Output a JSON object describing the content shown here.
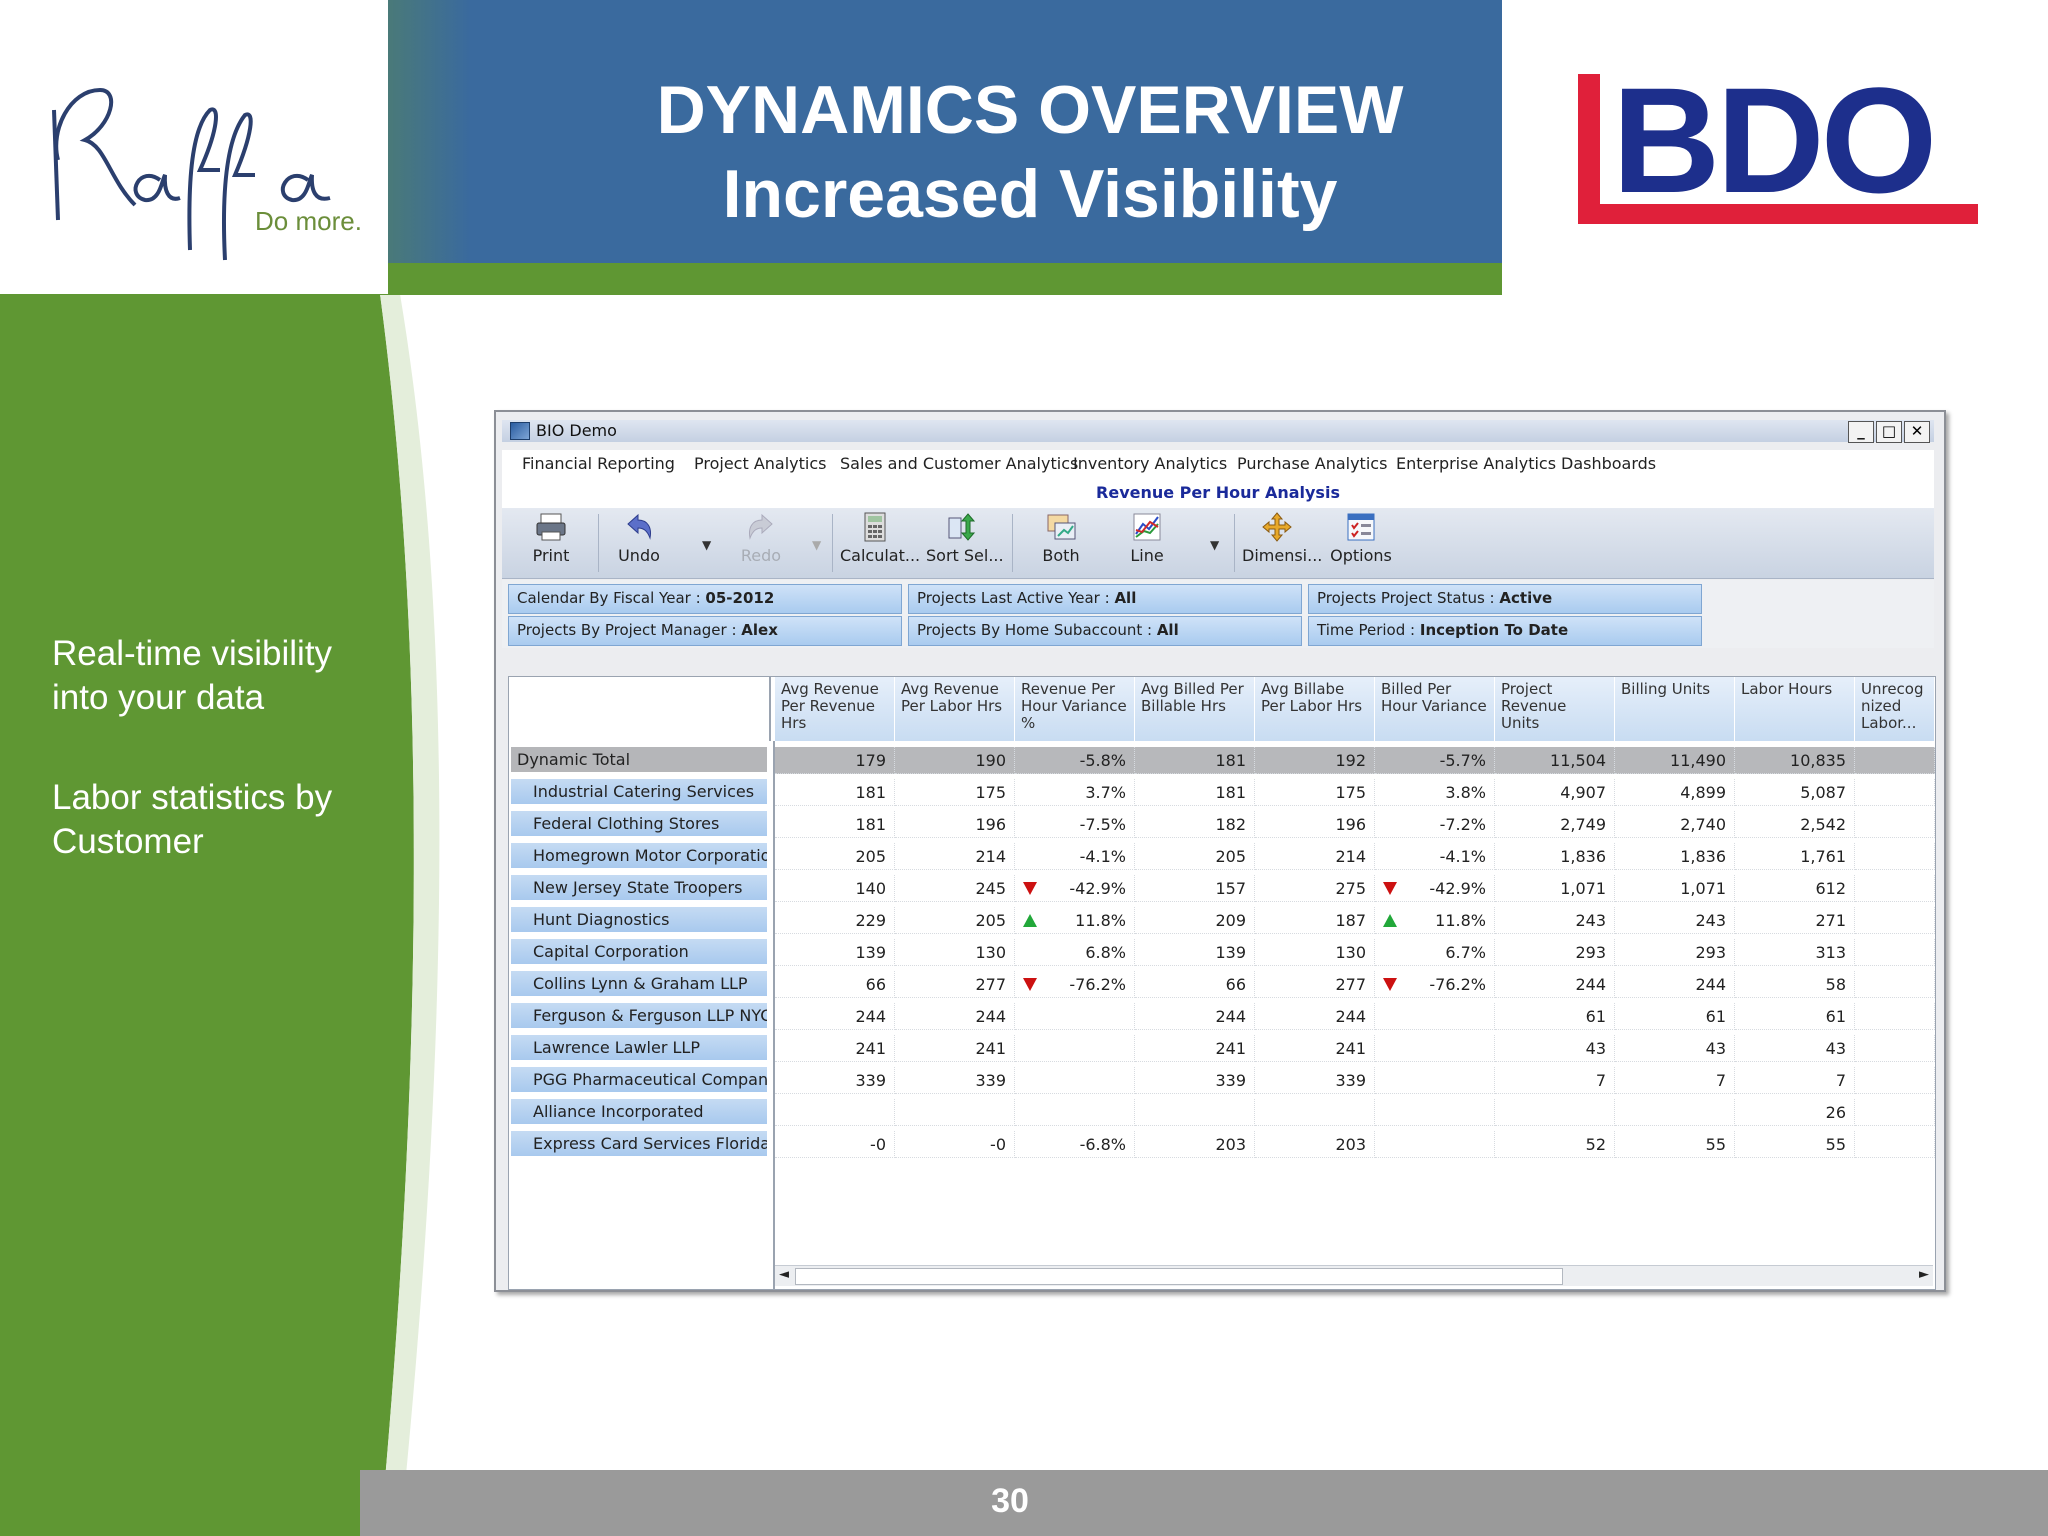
{
  "slide": {
    "title_line1": "DYNAMICS OVERVIEW",
    "title_line2": "Increased Visibility",
    "bullets": [
      "Real-time visibility into your data",
      "Labor statistics by Customer"
    ],
    "page_number": "30",
    "logo_left": {
      "text": "Raffa",
      "tagline": "Do more."
    },
    "logo_right": {
      "text": "BDO"
    },
    "colors": {
      "green": "#5f9733",
      "blue": "#3a6a9e",
      "bdo_red": "#e0203a",
      "bdo_blue": "#1d2f8c"
    }
  },
  "window": {
    "title": "BIO Demo",
    "controls": {
      "minimize": "_",
      "maximize": "□",
      "close": "✕"
    },
    "menu": [
      "Financial Reporting",
      "Project Analytics",
      "Sales and Customer Analytics",
      "Inventory Analytics",
      "Purchase Analytics",
      "Enterprise Analytics",
      "Dashboards"
    ],
    "report_title": "Revenue Per Hour Analysis",
    "toolbar": [
      {
        "label": "Print",
        "icon": "printer-icon"
      },
      {
        "label": "Undo",
        "icon": "undo-icon"
      },
      {
        "label": "Redo",
        "icon": "redo-icon",
        "disabled": true
      },
      {
        "label": "Calculat...",
        "icon": "calculator-icon"
      },
      {
        "label": "Sort Sel...",
        "icon": "sort-icon"
      },
      {
        "label": "Both",
        "icon": "chart-table-icon"
      },
      {
        "label": "Line",
        "icon": "line-chart-icon"
      },
      {
        "label": "Dimensi...",
        "icon": "dimensions-icon"
      },
      {
        "label": "Options",
        "icon": "options-icon"
      }
    ],
    "filters": [
      {
        "label": "Calendar By Fiscal Year :",
        "value": "05-2012"
      },
      {
        "label": "Projects Last Active Year :",
        "value": "All"
      },
      {
        "label": "Projects Project Status :",
        "value": "Active"
      },
      {
        "label": "Projects By Project Manager :",
        "value": "Alex"
      },
      {
        "label": "Projects By Home Subaccount :",
        "value": "All"
      },
      {
        "label": "Time Period :",
        "value": "Inception To Date"
      }
    ],
    "grid": {
      "columns": [
        "Avg Revenue Per Revenue Hrs",
        "Avg Revenue Per Labor Hrs",
        "Revenue Per Hour Variance %",
        "Avg Billed Per Billable Hrs",
        "Avg Billabe Per Labor Hrs",
        "Billed Per Hour Variance",
        "Project Revenue Units",
        "Billing Units",
        "Labor Hours",
        "Unrecog nized Labor..."
      ],
      "total_label": "Dynamic Total",
      "total_values": [
        "179",
        "190",
        "-5.8%",
        "181",
        "192",
        "-5.7%",
        "11,504",
        "11,490",
        "10,835",
        ""
      ],
      "rows": [
        {
          "label": "Industrial Catering Services",
          "values": [
            "181",
            "175",
            "3.7%",
            "181",
            "175",
            "3.8%",
            "4,907",
            "4,899",
            "5,087",
            ""
          ],
          "flag": ""
        },
        {
          "label": "Federal Clothing Stores",
          "values": [
            "181",
            "196",
            "-7.5%",
            "182",
            "196",
            "-7.2%",
            "2,749",
            "2,740",
            "2,542",
            ""
          ],
          "flag": ""
        },
        {
          "label": "Homegrown Motor Corporation",
          "values": [
            "205",
            "214",
            "-4.1%",
            "205",
            "214",
            "-4.1%",
            "1,836",
            "1,836",
            "1,761",
            ""
          ],
          "flag": ""
        },
        {
          "label": "New Jersey State Troopers",
          "values": [
            "140",
            "245",
            "-42.9%",
            "157",
            "275",
            "-42.9%",
            "1,071",
            "1,071",
            "612",
            ""
          ],
          "flag": "down"
        },
        {
          "label": "Hunt Diagnostics",
          "values": [
            "229",
            "205",
            "11.8%",
            "209",
            "187",
            "11.8%",
            "243",
            "243",
            "271",
            ""
          ],
          "flag": "up"
        },
        {
          "label": "Capital Corporation",
          "values": [
            "139",
            "130",
            "6.8%",
            "139",
            "130",
            "6.7%",
            "293",
            "293",
            "313",
            ""
          ],
          "flag": ""
        },
        {
          "label": "Collins Lynn & Graham LLP",
          "values": [
            "66",
            "277",
            "-76.2%",
            "66",
            "277",
            "-76.2%",
            "244",
            "244",
            "58",
            ""
          ],
          "flag": "down"
        },
        {
          "label": "Ferguson & Ferguson LLP NYC",
          "values": [
            "244",
            "244",
            "",
            "244",
            "244",
            "",
            "61",
            "61",
            "61",
            ""
          ],
          "flag": ""
        },
        {
          "label": "Lawrence Lawler LLP",
          "values": [
            "241",
            "241",
            "",
            "241",
            "241",
            "",
            "43",
            "43",
            "43",
            ""
          ],
          "flag": ""
        },
        {
          "label": "PGG Pharmaceutical Company",
          "values": [
            "339",
            "339",
            "",
            "339",
            "339",
            "",
            "7",
            "7",
            "7",
            ""
          ],
          "flag": ""
        },
        {
          "label": "Alliance Incorporated",
          "values": [
            "",
            "",
            "",
            "",
            "",
            "",
            "",
            "",
            "26",
            ""
          ],
          "flag": ""
        },
        {
          "label": "Express Card Services Florida",
          "values": [
            "-0",
            "-0",
            "-6.8%",
            "203",
            "203",
            "",
            "52",
            "55",
            "55",
            ""
          ],
          "flag": ""
        }
      ]
    }
  }
}
